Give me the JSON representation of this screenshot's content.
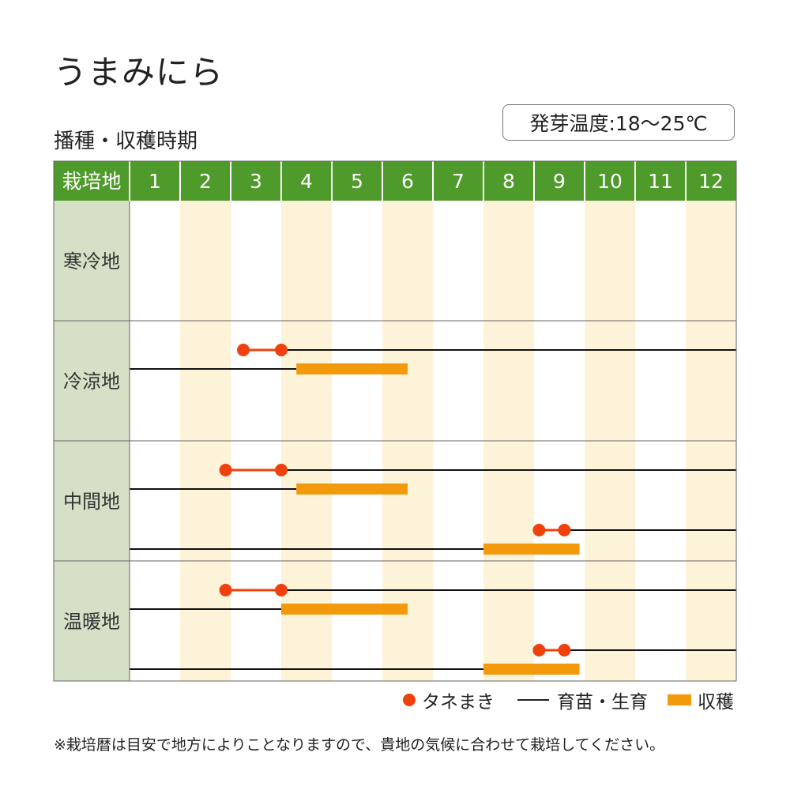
{
  "title": "うまみにら",
  "subtitle": "播種・収穫時期",
  "germination_temp": "発芽温度:18〜25℃",
  "legend": {
    "sowing": "タネまき",
    "growing": "育苗・生育",
    "harvest": "収穫"
  },
  "footnote": "※栽培暦は目安で地方によりことなりますので、貴地の気候に合わせて栽培してください。",
  "colors": {
    "header_green": "#4e9a2a",
    "region_cell": "#d5e0c6",
    "stripe": "#fdf3d9",
    "sowing_red": "#f0410d",
    "harvest_orange": "#f39a0c"
  },
  "chart_data": {
    "type": "table",
    "header_label": "栽培地",
    "months": [
      "1",
      "2",
      "3",
      "4",
      "5",
      "6",
      "7",
      "8",
      "9",
      "10",
      "11",
      "12"
    ],
    "regions": [
      {
        "name": "寒冷地",
        "schedules": []
      },
      {
        "name": "冷涼地",
        "schedules": [
          {
            "sowing": [
              3.25,
              4.0
            ],
            "growing_to_year_end": true,
            "harvest_growing_from_jan": true,
            "harvest": [
              4.3,
              6.5
            ]
          }
        ]
      },
      {
        "name": "中間地",
        "schedules": [
          {
            "sowing": [
              2.9,
              4.0
            ],
            "growing_to_year_end": true,
            "harvest_growing_from_jan": true,
            "harvest": [
              4.3,
              6.5
            ]
          },
          {
            "sowing": [
              9.1,
              9.6
            ],
            "growing_to_year_end": true,
            "harvest_growing_from_jan": true,
            "harvest": [
              8.0,
              9.9
            ]
          }
        ]
      },
      {
        "name": "温暖地",
        "schedules": [
          {
            "sowing": [
              2.9,
              4.0
            ],
            "growing_to_year_end": true,
            "harvest_growing_from_jan": true,
            "harvest": [
              4.0,
              6.5
            ]
          },
          {
            "sowing": [
              9.1,
              9.6
            ],
            "growing_to_year_end": true,
            "harvest_growing_from_jan": true,
            "harvest": [
              8.0,
              9.9
            ]
          }
        ]
      }
    ]
  }
}
